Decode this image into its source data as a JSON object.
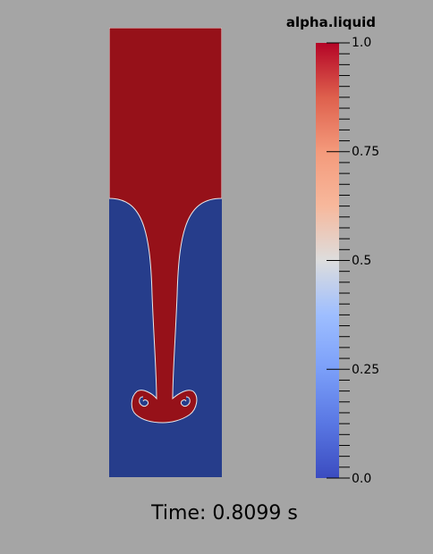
{
  "field_name": "alpha.liquid",
  "colormap": {
    "name": "Cool to Warm",
    "low_color": "#3b4cc0",
    "mid_color": "#dddddd",
    "high_color": "#b40426",
    "range": [
      0.0,
      1.0
    ]
  },
  "tick_labels": [
    "1.0",
    "0.75",
    "0.5",
    "0.25",
    "0.0"
  ],
  "time_label": "Time: 0.8099 s",
  "colors": {
    "background": "#a5a5a5",
    "liquid": "#961119",
    "gas": "#263d8b",
    "interface": "#e8e8e8"
  }
}
